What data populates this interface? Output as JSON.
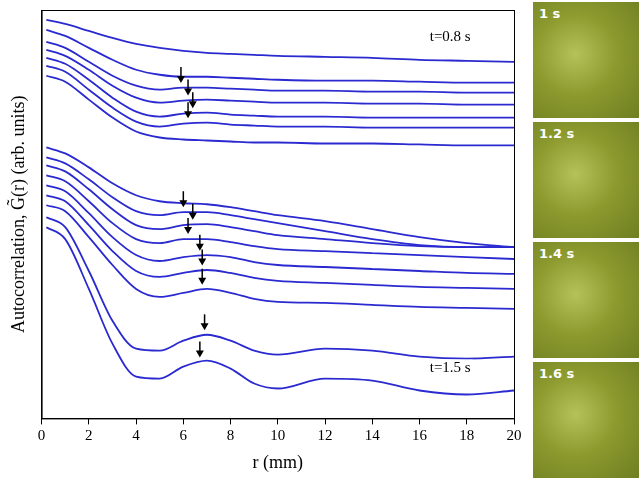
{
  "chart_data": {
    "type": "line",
    "y_label": "Autocorrelation, G̃(r) (arb. units)",
    "x_label": "r (mm)",
    "x": [
      0.2,
      1,
      2,
      3,
      4,
      5,
      6,
      7,
      8,
      9,
      10,
      12,
      14,
      16,
      18,
      20
    ],
    "xlim": [
      0,
      20
    ],
    "xticks": [
      0,
      2,
      4,
      6,
      8,
      10,
      12,
      14,
      16,
      18,
      20
    ],
    "ylim": [
      20,
      430
    ],
    "tick_labels": "x",
    "grid": false,
    "series": [
      {
        "color": "#2a2ad0",
        "values": [
          420,
          416,
          409,
          402,
          396,
          392,
          389,
          387,
          386,
          385,
          384,
          383,
          382,
          380,
          379,
          378
        ]
      },
      {
        "color": "#2a2ad0",
        "values": [
          410,
          404,
          392,
          380,
          370,
          365,
          363,
          363,
          362,
          361,
          360,
          359,
          359,
          358,
          357,
          357
        ]
      },
      {
        "color": "#2a2ad0",
        "values": [
          398,
          392,
          378,
          364,
          354,
          350,
          352,
          352,
          351,
          350,
          349,
          349,
          348,
          348,
          347,
          347
        ],
        "peak_r": 5.9
      },
      {
        "color": "#2a2ad0",
        "values": [
          390,
          384,
          370,
          354,
          342,
          337,
          339,
          340,
          339,
          338,
          337,
          337,
          336,
          336,
          335,
          335
        ],
        "peak_r": 6.2
      },
      {
        "color": "#2a2ad0",
        "values": [
          382,
          376,
          360,
          342,
          328,
          323,
          326,
          327,
          325,
          324,
          323,
          323,
          322,
          322,
          322,
          322
        ],
        "peak_r": 6.4
      },
      {
        "color": "#2a2ad0",
        "values": [
          374,
          368,
          350,
          332,
          318,
          313,
          316,
          317,
          315,
          314,
          313,
          313,
          312,
          312,
          312,
          312
        ],
        "peak_r": 6.2
      },
      {
        "color": "#2a2ad0",
        "values": [
          364,
          358,
          340,
          322,
          308,
          302,
          300,
          299,
          298,
          297,
          297,
          296,
          296,
          295,
          294,
          294
        ]
      },
      {
        "color": "#2a2ad0",
        "values": [
          292,
          286,
          272,
          256,
          244,
          238,
          236,
          235,
          232,
          228,
          224,
          218,
          210,
          202,
          196,
          192
        ]
      },
      {
        "color": "#2a2ad0",
        "values": [
          282,
          276,
          260,
          242,
          228,
          224,
          227,
          227,
          224,
          220,
          216,
          208,
          200,
          194,
          192,
          192
        ],
        "peak_r": 6.0
      },
      {
        "color": "#2a2ad0",
        "values": [
          274,
          268,
          250,
          230,
          214,
          210,
          214,
          215,
          212,
          208,
          204,
          200,
          196,
          193,
          192,
          192
        ],
        "peak_r": 6.4
      },
      {
        "color": "#2a2ad0",
        "values": [
          264,
          258,
          238,
          216,
          200,
          196,
          200,
          200,
          197,
          193,
          190,
          188,
          186,
          184,
          182,
          180
        ],
        "peak_r": 6.2
      },
      {
        "color": "#2a2ad0",
        "values": [
          254,
          248,
          226,
          202,
          184,
          178,
          182,
          184,
          182,
          177,
          174,
          172,
          170,
          168,
          166,
          165
        ],
        "peak_r": 6.7
      },
      {
        "color": "#2a2ad0",
        "values": [
          244,
          238,
          214,
          188,
          168,
          162,
          166,
          169,
          166,
          161,
          158,
          156,
          154,
          152,
          151,
          150
        ],
        "peak_r": 6.8
      },
      {
        "color": "#2a2ad0",
        "values": [
          234,
          228,
          202,
          174,
          150,
          142,
          146,
          150,
          146,
          140,
          137,
          136,
          134,
          132,
          131,
          130
        ],
        "peak_r": 6.8
      },
      {
        "color": "#2a2ad0",
        "values": [
          222,
          212,
          168,
          118,
          90,
          88,
          98,
          104,
          98,
          88,
          84,
          90,
          88,
          82,
          80,
          82
        ],
        "peak_r": 6.9
      },
      {
        "color": "#2a2ad0",
        "values": [
          212,
          200,
          150,
          95,
          62,
          60,
          72,
          78,
          70,
          55,
          50,
          60,
          58,
          48,
          44,
          48
        ],
        "peak_r": 6.7
      }
    ],
    "annotations": [
      {
        "text": "t=0.8 s",
        "x": 17.3,
        "y": 392
      },
      {
        "text": "t=1.5 s",
        "x": 17.3,
        "y": 60
      }
    ]
  },
  "images": [
    "1 s",
    "1.2 s",
    "1.4 s",
    "1.6 s"
  ]
}
